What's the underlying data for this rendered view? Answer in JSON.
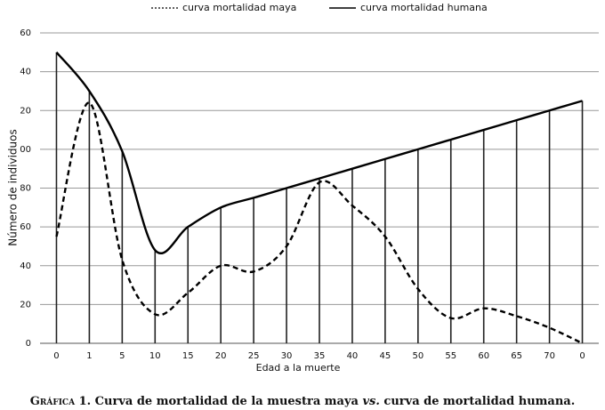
{
  "chart_data": {
    "type": "line",
    "xlabel": "Edad a la muerte",
    "ylabel": "Número de individuos",
    "caption": [
      "Gráfica",
      " 1. Curva de mortalidad de la muestra maya ",
      "vs.",
      " curva de mortalidad humana."
    ],
    "categories": [
      "0",
      "1",
      "5",
      "10",
      "15",
      "20",
      "25",
      "30",
      "35",
      "40",
      "45",
      "50",
      "55",
      "60",
      "65",
      "70",
      "0"
    ],
    "series": [
      {
        "name": "curva mortalidad maya",
        "color": "#000000",
        "dash": true,
        "values": [
          55,
          124,
          43,
          15,
          26,
          40,
          37,
          50,
          83,
          71,
          55,
          28,
          13,
          18,
          14,
          8,
          0
        ]
      },
      {
        "name": "curva mortalidad humana",
        "color": "#000000",
        "dash": false,
        "values": [
          150,
          130,
          99,
          48,
          60,
          70,
          75,
          80,
          85,
          90,
          95,
          100,
          105,
          110,
          115,
          120,
          125
        ]
      }
    ],
    "ylim": [
      0,
      160
    ],
    "yticks": [
      0,
      20,
      40,
      60,
      80,
      {
        "value": 100,
        "label": "00"
      },
      {
        "value": 120,
        "label": "20"
      },
      {
        "value": 140,
        "label": "40"
      },
      {
        "value": 160,
        "label": "60"
      }
    ],
    "grid": true,
    "droplines": true,
    "legend": "top"
  }
}
